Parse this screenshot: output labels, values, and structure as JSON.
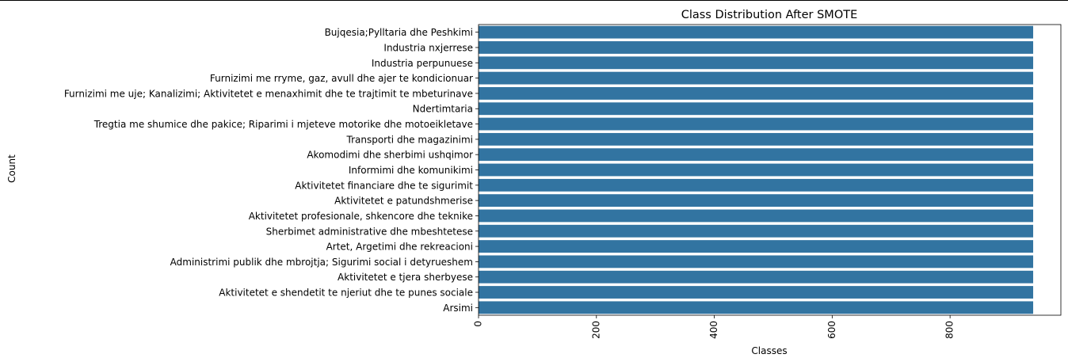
{
  "chart_data": {
    "type": "bar",
    "orientation": "horizontal",
    "title": "Class Distribution After SMOTE",
    "xlabel": "Classes",
    "ylabel": "Count",
    "categories": [
      "Bujqesia;Pylltaria dhe Peshkimi",
      "Industria nxjerrese",
      "Industria perpunuese",
      "Furnizimi me rryme, gaz, avull dhe  ajer te kondicionuar",
      "Furnizimi me uje; Kanalizimi; Aktivitetet e menaxhimit dhe te trajtimit te mbeturinave",
      "Ndertimtaria",
      "Tregtia me shumice dhe pakice; Riparimi i mjeteve motorike dhe motoeikletave",
      "Transporti dhe magazinimi",
      "Akomodimi dhe sherbimi ushqimor",
      "Informimi dhe komunikimi",
      "Aktivitetet financiare dhe te sigurimit",
      "Aktivitetet e patundshmerise",
      "Aktivitetet profesionale, shkencore dhe teknike",
      "Sherbimet administrative dhe mbeshtetese",
      "Artet, Argetimi dhe rekreacioni",
      "Administrimi publik dhe mbrojtja; Sigurimi social i detyrueshem",
      "Aktivitetet e tjera sherbyese",
      "Aktivitetet e shendetit te njeriut dhe te punes sociale",
      "Arsimi"
    ],
    "values": [
      941,
      941,
      941,
      941,
      941,
      941,
      941,
      941,
      941,
      941,
      941,
      941,
      941,
      941,
      941,
      941,
      941,
      941,
      941
    ],
    "xlim": [
      0,
      988
    ],
    "xticks": [
      0,
      200,
      400,
      600,
      800
    ],
    "xtick_rotation": 90,
    "grid": false,
    "bar_color": "#3274a1"
  }
}
